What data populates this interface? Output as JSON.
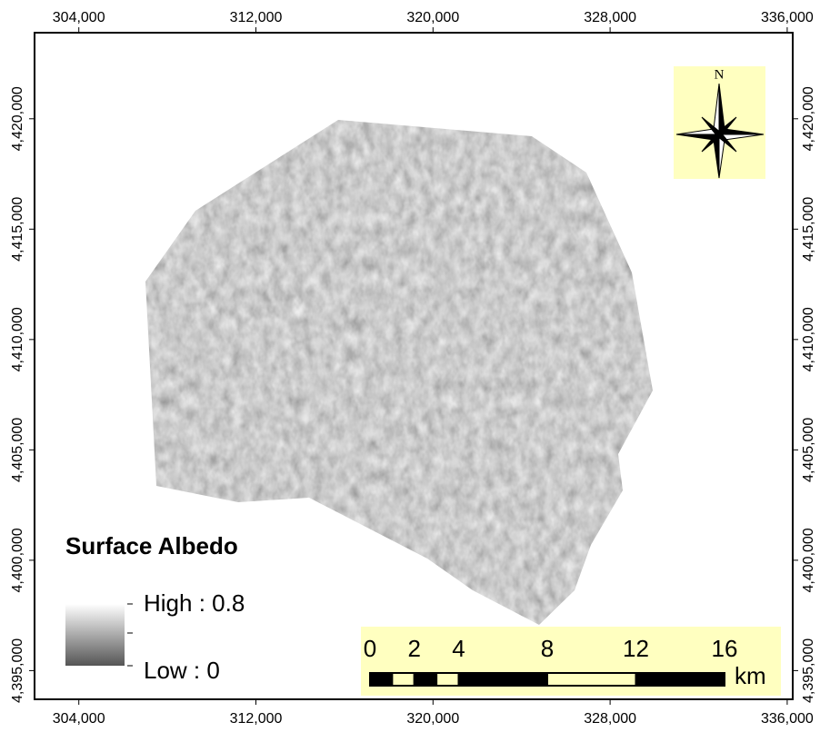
{
  "map": {
    "xlim": [
      302000,
      336250
    ],
    "ylim": [
      4393700,
      4423900
    ],
    "xticks": [
      {
        "value": 304000,
        "label": "304,000"
      },
      {
        "value": 312000,
        "label": "312,000"
      },
      {
        "value": 320000,
        "label": "320,000"
      },
      {
        "value": 328000,
        "label": "328,000"
      },
      {
        "value": 336000,
        "label": "336,000"
      }
    ],
    "yticks": [
      {
        "value": 4395000,
        "label": "4,395,000"
      },
      {
        "value": 4400000,
        "label": "4,400,000"
      },
      {
        "value": 4405000,
        "label": "4,405,000"
      },
      {
        "value": 4410000,
        "label": "4,410,000"
      },
      {
        "value": 4415000,
        "label": "4,415,000"
      },
      {
        "value": 4420000,
        "label": "4,420,000"
      }
    ],
    "legend": {
      "title": "Surface Albedo",
      "high": "High : 0.8",
      "low": "Low : 0"
    },
    "north_arrow": "N",
    "scale_bar": {
      "ticks": [
        0,
        2,
        4,
        8,
        12,
        16
      ],
      "unit": "km"
    }
  }
}
